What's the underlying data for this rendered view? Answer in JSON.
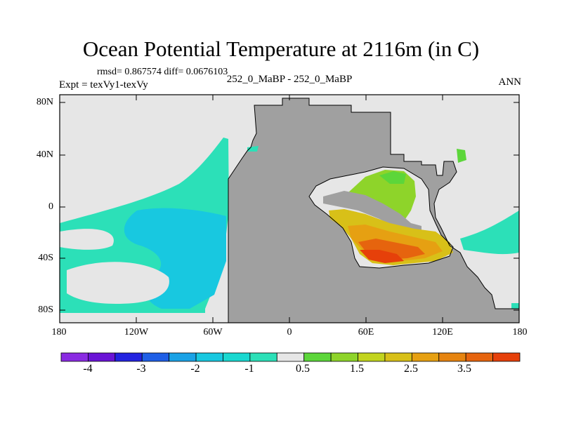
{
  "chart_data": {
    "type": "heatmap",
    "title": "Ocean Potential Temperature at 2116m (in C)",
    "stats": "rmsd= 0.867574  diff= 0.0676103",
    "subtitle": "252_0_MaBP - 252_0_MaBP",
    "left_label": "Expt = texVy1-texVy",
    "right_label": "ANN",
    "x_ticks": [
      "180",
      "120W",
      "60W",
      "0",
      "60E",
      "120E",
      "180"
    ],
    "y_ticks": [
      "80N",
      "40N",
      "0",
      "40S",
      "80S"
    ],
    "xlim": [
      -180,
      180
    ],
    "ylim": [
      -90,
      90
    ],
    "colorbar": {
      "colors": [
        "#8a2be2",
        "#6a14d6",
        "#2323e0",
        "#1f5fe6",
        "#1aa2e6",
        "#18c8e0",
        "#19d8d0",
        "#2ce0b8",
        "#e6e6e6",
        "#5cd63a",
        "#8ed42a",
        "#c2d41e",
        "#d8c018",
        "#e6a012",
        "#e68410",
        "#e6640e",
        "#e6400a"
      ],
      "labels": [
        "-4",
        "-3",
        "-2",
        "-1",
        "0.5",
        "1.5",
        "2.5",
        "3.5"
      ],
      "label_positions": [
        1,
        3,
        5,
        7,
        9,
        11,
        13,
        15
      ]
    },
    "land_color": "#a0a0a0",
    "ocean_neutral_color": "#e6e6e6"
  }
}
